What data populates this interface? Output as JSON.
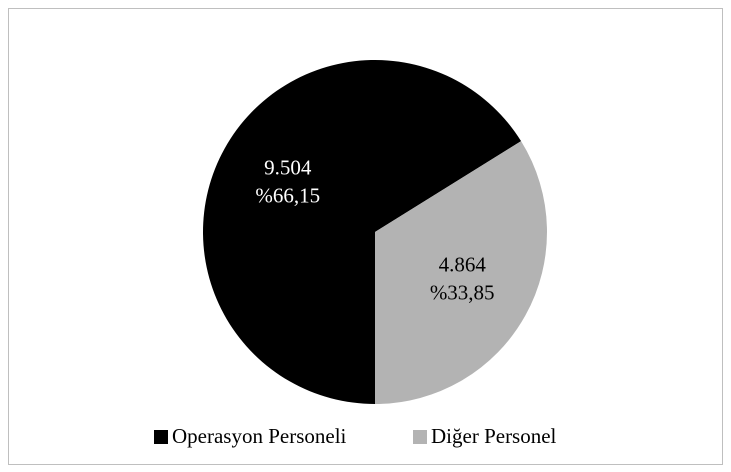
{
  "chart_data": {
    "type": "pie",
    "categories": [
      "Operasyon Personeli",
      "Diğer Personel"
    ],
    "values": [
      9504,
      4864
    ],
    "value_labels": [
      "9.504",
      "4.864"
    ],
    "percents": [
      66.15,
      33.85
    ],
    "percent_labels": [
      "%66,15",
      "%33,85"
    ],
    "colors": [
      "#000000",
      "#b3b3b3"
    ],
    "legend": "bottom"
  }
}
